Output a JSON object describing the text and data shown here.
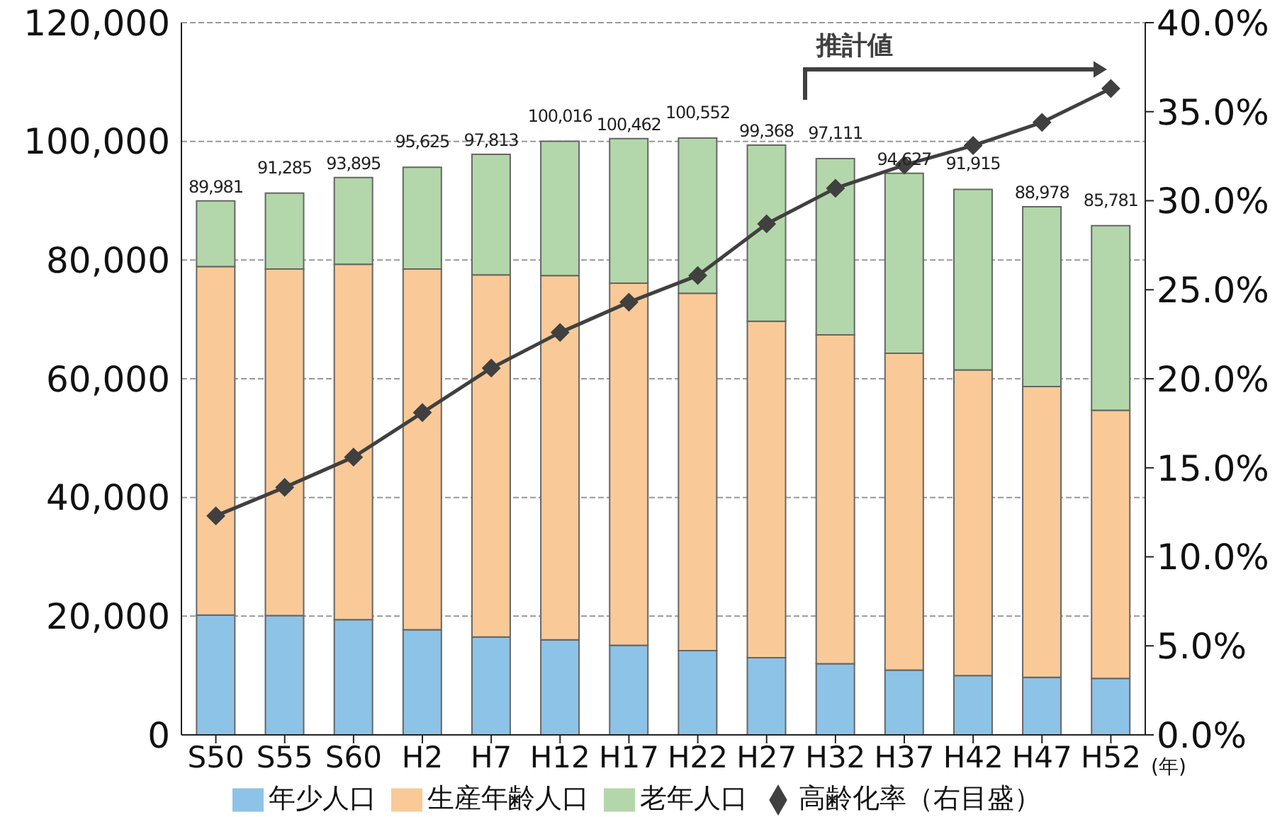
{
  "chart_data": {
    "type": "bar",
    "stacked": true,
    "categories": [
      "S50",
      "S55",
      "S60",
      "H2",
      "H7",
      "H12",
      "H17",
      "H22",
      "H27",
      "H32",
      "H37",
      "H42",
      "H47",
      "H52"
    ],
    "xlabel": "(年)",
    "series": [
      {
        "name": "年少人口",
        "color": "#8dc3e6",
        "values": [
          20200,
          20100,
          19400,
          17700,
          16500,
          16000,
          15100,
          14200,
          13000,
          12000,
          10900,
          10000,
          9700,
          9500
        ]
      },
      {
        "name": "生産年齢人口",
        "color": "#f9ca98",
        "values": [
          58700,
          58400,
          59900,
          60800,
          61000,
          61400,
          61000,
          60200,
          56700,
          55400,
          53400,
          51500,
          49000,
          45200
        ]
      },
      {
        "name": "老年人口",
        "color": "#b3d7aa",
        "values": [
          11081,
          12785,
          14595,
          17125,
          20313,
          22616,
          24362,
          26152,
          29668,
          29711,
          30327,
          30415,
          30278,
          31081
        ]
      },
      {
        "name": "高齢化率（右目盛）",
        "type": "line",
        "axis": "y2",
        "color": "#404040",
        "marker": "diamond",
        "values": [
          12.3,
          13.9,
          15.6,
          18.1,
          20.6,
          22.6,
          24.3,
          25.8,
          28.7,
          30.7,
          32.0,
          33.1,
          34.4,
          36.3
        ]
      }
    ],
    "totals": [
      "89,981",
      "91,285",
      "93,895",
      "95,625",
      "97,813",
      "100,016",
      "100,462",
      "100,552",
      "99,368",
      "97,111",
      "94,627",
      "91,915",
      "88,978",
      "85,781"
    ],
    "ylim": [
      0,
      120000
    ],
    "yticks": [
      {
        "value": 0,
        "label": "0"
      },
      {
        "value": 20000,
        "label": "20,000"
      },
      {
        "value": 40000,
        "label": "40,000"
      },
      {
        "value": 60000,
        "label": "60,000"
      },
      {
        "value": 80000,
        "label": "80,000"
      },
      {
        "value": 100000,
        "label": "100,000"
      },
      {
        "value": 120000,
        "label": "120,000"
      }
    ],
    "y2lim": [
      0,
      40
    ],
    "y2ticks": [
      {
        "value": 0,
        "label": "0.0%"
      },
      {
        "value": 5,
        "label": "5.0%"
      },
      {
        "value": 10,
        "label": "10.0%"
      },
      {
        "value": 15,
        "label": "15.0%"
      },
      {
        "value": 20,
        "label": "20.0%"
      },
      {
        "value": 25,
        "label": "25.0%"
      },
      {
        "value": 30,
        "label": "30.0%"
      },
      {
        "value": 35,
        "label": "35.0%"
      },
      {
        "value": 40,
        "label": "40.0%"
      }
    ],
    "annotations": [
      "推計値"
    ],
    "grid": "y",
    "legend": "bottom"
  }
}
